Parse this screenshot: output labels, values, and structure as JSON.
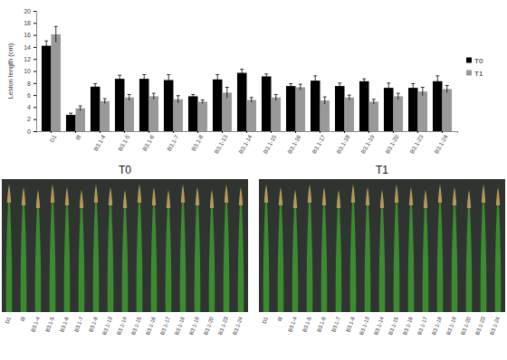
{
  "chart_data": {
    "type": "bar",
    "y_label": "Lesion length (cm)",
    "categories": [
      "D1",
      "I8",
      "B3.1-4",
      "B3.1-5",
      "B3.1-6",
      "B3.1-7",
      "B3.1-8",
      "B3.1-13",
      "B3.1-14",
      "B3.1-15",
      "B3.1-16",
      "B3.1-17",
      "B3.1-18",
      "B3.1-19",
      "B3.1-20",
      "B3.1-23",
      "B3.1-24"
    ],
    "series": [
      {
        "name": "T0",
        "color": "#000000",
        "values": [
          14.2,
          2.7,
          7.4,
          8.7,
          8.7,
          8.5,
          5.8,
          8.6,
          9.7,
          9.1,
          7.5,
          8.4,
          7.5,
          8.3,
          7.2,
          7.2,
          8.3
        ],
        "errors": [
          0.8,
          0.3,
          0.5,
          0.6,
          0.7,
          0.9,
          0.3,
          0.8,
          0.6,
          0.4,
          0.4,
          0.8,
          0.5,
          0.4,
          0.8,
          0.7,
          0.9
        ]
      },
      {
        "name": "T1",
        "color": "#999999",
        "values": [
          16.1,
          3.8,
          5.0,
          5.6,
          5.8,
          5.3,
          4.9,
          6.4,
          5.2,
          5.6,
          7.3,
          5.1,
          5.6,
          4.9,
          5.8,
          6.6,
          7.0
        ],
        "errors": [
          1.3,
          0.4,
          0.4,
          0.5,
          0.5,
          0.6,
          0.3,
          0.9,
          0.4,
          0.5,
          0.5,
          0.6,
          0.4,
          0.4,
          0.5,
          0.7,
          0.6
        ]
      }
    ],
    "ylim": [
      0,
      20
    ],
    "yticks": [
      0,
      2,
      4,
      6,
      8,
      10,
      12,
      14,
      16,
      18,
      20
    ],
    "grid": false,
    "legend": "right"
  },
  "photos": [
    {
      "title": "T0",
      "labels": [
        "D1",
        "I8",
        "B3.1-4",
        "B3.1-5",
        "B3.1-6",
        "B3.1-7",
        "B3.1-8",
        "B3.1-13",
        "B3.1-14",
        "B3.1-15",
        "B3.1-16",
        "B3.1-17",
        "B3.1-18",
        "B3.1-19",
        "B3.1-20",
        "B3.1-23",
        "B3.1-24"
      ]
    },
    {
      "title": "T1",
      "labels": [
        "D1",
        "I8",
        "B3.1-4",
        "B3.1-5",
        "B3.1-6",
        "B3.1-7",
        "B3.1-8",
        "B3.1-13",
        "B3.1-14",
        "B3.1-15",
        "B3.1-16",
        "B3.1-17",
        "B3.1-18",
        "B3.1-19",
        "B3.1-20",
        "B3.1-23",
        "B3.1-24"
      ]
    }
  ]
}
